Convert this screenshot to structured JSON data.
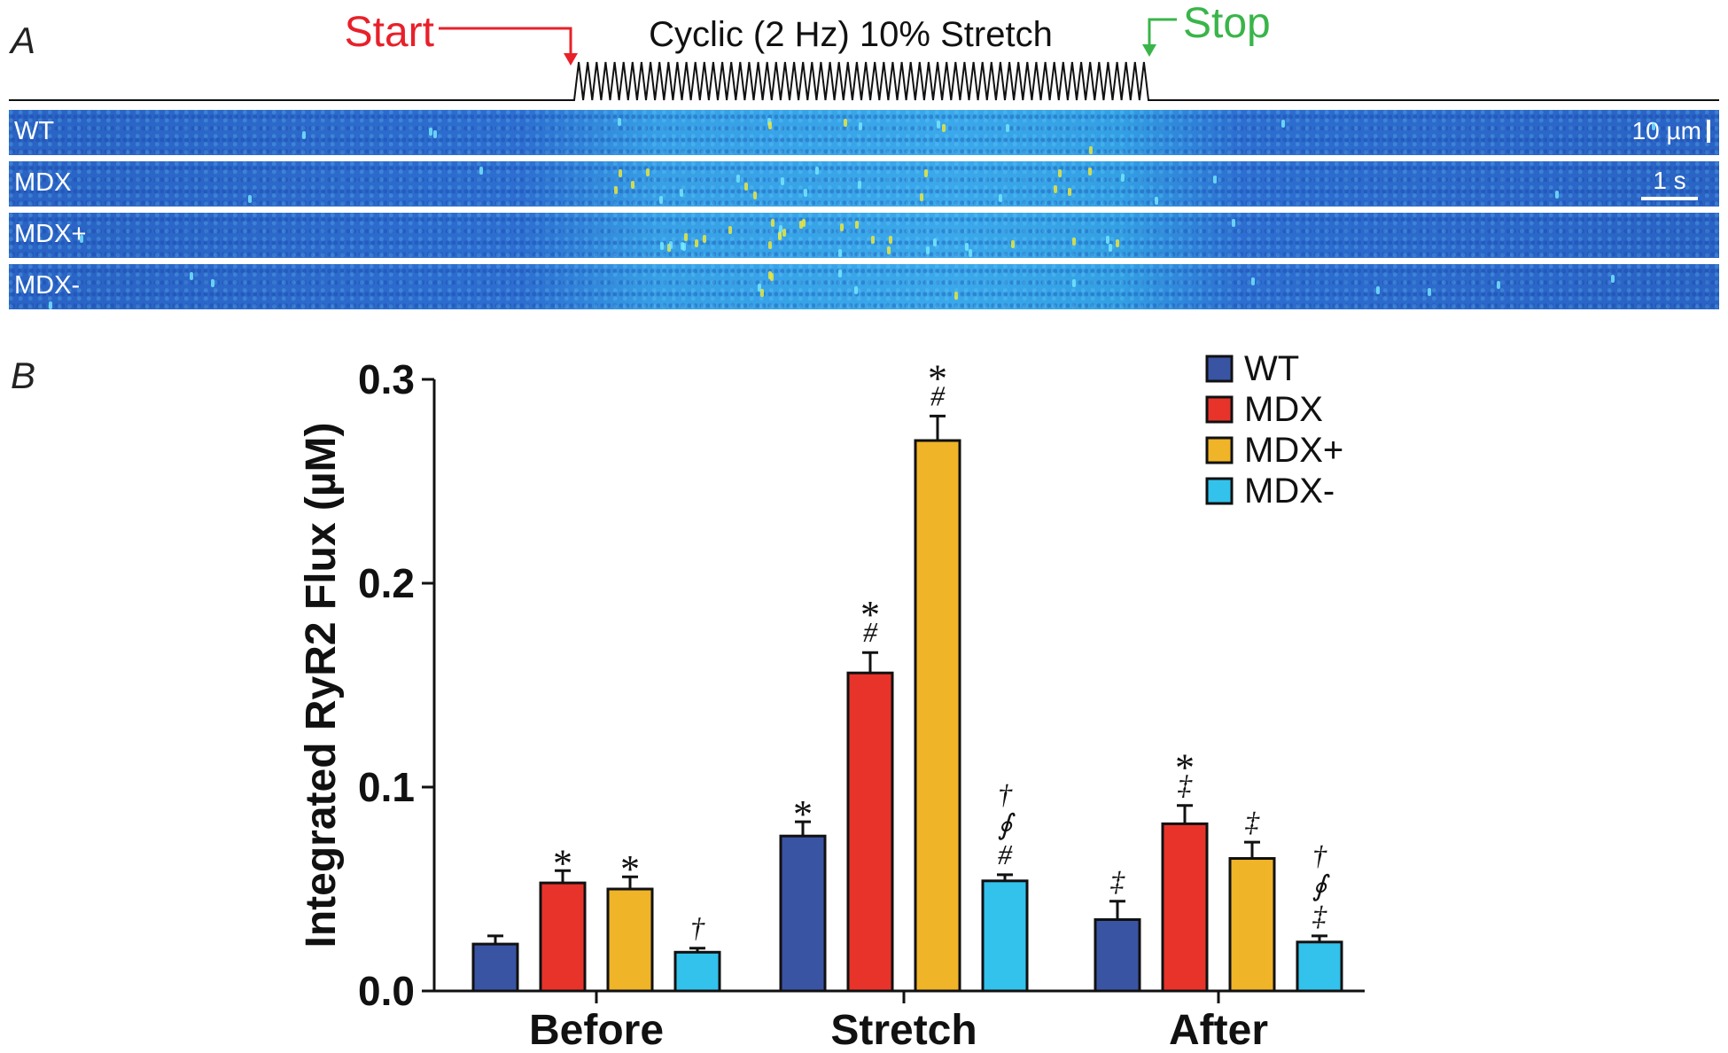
{
  "panel_a": {
    "letter": "A",
    "start_label": "Start",
    "stop_label": "Stop",
    "protocol_label": "Cyclic (2 Hz) 10% Stretch",
    "strips": [
      {
        "label": "WT"
      },
      {
        "label": "MDX"
      },
      {
        "label": "MDX+"
      },
      {
        "label": "MDX-"
      }
    ],
    "scale_space": "10 µm",
    "scale_time": "1 s"
  },
  "panel_b": {
    "letter": "B"
  },
  "colors": {
    "wt": "#3a54a4",
    "mdx": "#e8332a",
    "mdx_plus": "#f0b428",
    "mdx_minus": "#32c2ec",
    "start": "#e8202a",
    "stop": "#39b54a"
  },
  "chart_data": {
    "type": "bar",
    "title": "",
    "xlabel": "",
    "ylabel": "Integrated RyR2 Flux (µM)",
    "ylim": [
      0,
      0.3
    ],
    "yticks": [
      "0.0",
      "0.1",
      "0.2",
      "0.3"
    ],
    "categories": [
      "Before",
      "Stretch",
      "After"
    ],
    "series": [
      {
        "name": "WT",
        "values": [
          0.023,
          0.076,
          0.035
        ],
        "errors": [
          0.004,
          0.007,
          0.009
        ],
        "annotations": [
          [],
          [
            "*"
          ],
          [
            "‡"
          ]
        ]
      },
      {
        "name": "MDX",
        "values": [
          0.053,
          0.156,
          0.082
        ],
        "errors": [
          0.006,
          0.01,
          0.009
        ],
        "annotations": [
          [
            "*"
          ],
          [
            "#",
            "*"
          ],
          [
            "‡",
            "*"
          ]
        ]
      },
      {
        "name": "MDX+",
        "values": [
          0.05,
          0.27,
          0.065
        ],
        "errors": [
          0.006,
          0.012,
          0.008
        ],
        "annotations": [
          [
            "*"
          ],
          [
            "#",
            "*"
          ],
          [
            "‡"
          ]
        ]
      },
      {
        "name": "MDX-",
        "values": [
          0.019,
          0.054,
          0.024
        ],
        "errors": [
          0.002,
          0.003,
          0.003
        ],
        "annotations": [
          [
            "†"
          ],
          [
            "#",
            "∮",
            "†"
          ],
          [
            "‡",
            "∮",
            "†"
          ]
        ]
      }
    ],
    "legend": {
      "position": "top-right"
    }
  }
}
